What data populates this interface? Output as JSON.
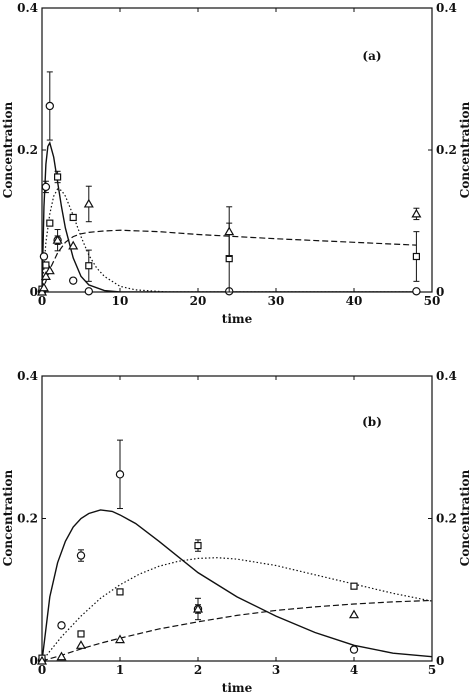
{
  "chart_data": [
    {
      "type": "line",
      "panel_label": "(a)",
      "xlabel": "time",
      "ylabel_left": "Concentration",
      "ylabel_right": "Concentration",
      "xlim": [
        0,
        50
      ],
      "ylim": [
        0,
        0.4
      ],
      "xticks": [
        "0",
        "10",
        "20",
        "30",
        "40",
        "50"
      ],
      "yticks_left": [
        "0",
        "0.2",
        "0.4"
      ],
      "yticks_right": [
        "0",
        "0.2",
        "0.4"
      ],
      "grid": false,
      "legend": "none",
      "lines": [
        {
          "style": "solid",
          "x": [
            0,
            0.25,
            0.5,
            0.75,
            1,
            1.5,
            2,
            2.5,
            3,
            4,
            5,
            6,
            8,
            10,
            20,
            30,
            40,
            48
          ],
          "y": [
            0,
            0.12,
            0.18,
            0.205,
            0.21,
            0.19,
            0.155,
            0.12,
            0.09,
            0.048,
            0.022,
            0.01,
            0.002,
            0,
            0,
            0,
            0,
            0
          ]
        },
        {
          "style": "dotted",
          "x": [
            0,
            0.5,
            1,
            1.5,
            2,
            2.5,
            3,
            4,
            5,
            6,
            7,
            8,
            10,
            12,
            16,
            20,
            30,
            40,
            48
          ],
          "y": [
            0,
            0.07,
            0.11,
            0.135,
            0.145,
            0.143,
            0.135,
            0.108,
            0.078,
            0.052,
            0.034,
            0.022,
            0.008,
            0.003,
            0,
            0,
            0,
            0,
            0
          ]
        },
        {
          "style": "dashed",
          "x": [
            0,
            0.5,
            1,
            2,
            3,
            4,
            5,
            6,
            8,
            10,
            15,
            20,
            30,
            40,
            48
          ],
          "y": [
            0,
            0.015,
            0.032,
            0.055,
            0.07,
            0.078,
            0.082,
            0.084,
            0.086,
            0.087,
            0.085,
            0.081,
            0.075,
            0.07,
            0.066
          ]
        }
      ],
      "markers": [
        {
          "shape": "circle",
          "x": [
            0,
            0.25,
            0.5,
            1,
            2,
            4,
            6,
            24,
            48
          ],
          "y": [
            0.001,
            0.05,
            0.148,
            0.262,
            0.073,
            0.016,
            0.001,
            0.001,
            0.001
          ],
          "err": [
            0,
            0,
            0.008,
            0.048,
            0.006,
            0,
            0,
            0,
            0
          ]
        },
        {
          "shape": "square",
          "x": [
            0,
            0.5,
            1,
            2,
            4,
            6,
            24,
            48
          ],
          "y": [
            0.004,
            0.038,
            0.097,
            0.162,
            0.105,
            0.037,
            0.047,
            0.05
          ],
          "err": [
            0,
            0,
            0,
            0.008,
            0,
            0.022,
            0.05,
            0.035
          ]
        },
        {
          "shape": "triangle",
          "x": [
            0,
            0.25,
            0.5,
            1,
            2,
            4,
            6,
            24,
            48
          ],
          "y": [
            0,
            0.006,
            0.022,
            0.03,
            0.073,
            0.065,
            0.124,
            0.085,
            0.11
          ],
          "err": [
            0,
            0,
            0,
            0,
            0.015,
            0,
            0.025,
            0.035,
            0.008
          ]
        }
      ]
    },
    {
      "type": "line",
      "panel_label": "(b)",
      "xlabel": "time",
      "ylabel_left": "Concentration",
      "ylabel_right": "Concentration",
      "xlim": [
        0,
        5
      ],
      "ylim": [
        0,
        0.4
      ],
      "xticks": [
        "0",
        "1",
        "2",
        "3",
        "4",
        "5"
      ],
      "yticks_left": [
        "0",
        "0.2",
        "0.4"
      ],
      "yticks_right": [
        "0",
        "0.2",
        "0.4"
      ],
      "grid": false,
      "legend": "none",
      "lines": [
        {
          "style": "solid",
          "x": [
            0,
            0.1,
            0.2,
            0.3,
            0.4,
            0.5,
            0.6,
            0.75,
            0.9,
            1.0,
            1.2,
            1.5,
            2.0,
            2.5,
            3.0,
            3.5,
            4.0,
            4.5,
            5.0
          ],
          "y": [
            0,
            0.09,
            0.138,
            0.168,
            0.188,
            0.2,
            0.207,
            0.212,
            0.21,
            0.205,
            0.193,
            0.168,
            0.124,
            0.09,
            0.063,
            0.04,
            0.022,
            0.011,
            0.006
          ]
        },
        {
          "style": "dotted",
          "x": [
            0,
            0.25,
            0.5,
            0.75,
            1.0,
            1.25,
            1.5,
            1.75,
            2.0,
            2.25,
            2.5,
            3.0,
            3.5,
            4.0,
            4.5,
            5.0
          ],
          "y": [
            0,
            0.034,
            0.063,
            0.088,
            0.107,
            0.122,
            0.133,
            0.14,
            0.144,
            0.145,
            0.143,
            0.134,
            0.121,
            0.108,
            0.095,
            0.084
          ]
        },
        {
          "style": "dashed",
          "x": [
            0,
            0.25,
            0.5,
            0.75,
            1.0,
            1.5,
            2.0,
            2.5,
            3.0,
            3.5,
            4.0,
            4.5,
            5.0
          ],
          "y": [
            0,
            0.008,
            0.017,
            0.025,
            0.032,
            0.045,
            0.055,
            0.064,
            0.071,
            0.076,
            0.08,
            0.083,
            0.085
          ]
        }
      ],
      "markers": [
        {
          "shape": "circle",
          "x": [
            0,
            0.25,
            0.5,
            1,
            2,
            4
          ],
          "y": [
            0.001,
            0.05,
            0.148,
            0.262,
            0.073,
            0.016
          ],
          "err": [
            0,
            0,
            0.008,
            0.048,
            0.006,
            0
          ]
        },
        {
          "shape": "square",
          "x": [
            0,
            0.5,
            1,
            2,
            4
          ],
          "y": [
            0.004,
            0.038,
            0.097,
            0.162,
            0.105
          ],
          "err": [
            0,
            0,
            0,
            0.008,
            0
          ]
        },
        {
          "shape": "triangle",
          "x": [
            0,
            0.25,
            0.5,
            1,
            2,
            4
          ],
          "y": [
            0,
            0.006,
            0.022,
            0.03,
            0.073,
            0.065
          ],
          "err": [
            0,
            0,
            0,
            0,
            0.015,
            0
          ]
        }
      ]
    }
  ]
}
